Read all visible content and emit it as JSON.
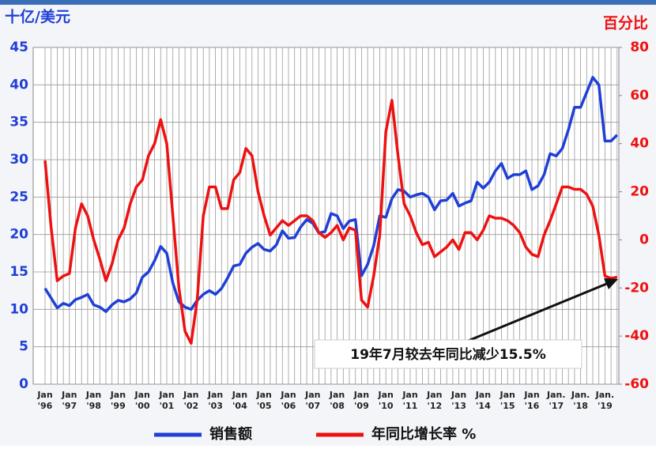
{
  "chart_data": {
    "type": "line",
    "y_label": "十亿/美元",
    "y2_label": "百分比",
    "annotation": "19年7月较去年同比减少15.5%",
    "categories": [
      "Jan '96",
      null,
      null,
      null,
      "Jan '97",
      null,
      null,
      null,
      "Jan '98",
      null,
      null,
      null,
      "Jan '99",
      null,
      null,
      null,
      "Jan '00",
      null,
      null,
      null,
      "Jan '01",
      null,
      null,
      null,
      "Jan '02",
      null,
      null,
      null,
      "Jan '03",
      null,
      null,
      null,
      "Jan '04",
      null,
      null,
      null,
      "Jan '05",
      null,
      null,
      null,
      "Jan '06",
      null,
      null,
      null,
      "Jan '07",
      null,
      null,
      null,
      "Jan '08",
      null,
      null,
      null,
      "Jan '09",
      null,
      null,
      null,
      "Jan '10",
      null,
      null,
      null,
      "Jan '11",
      null,
      null,
      null,
      "Jan '12",
      null,
      null,
      null,
      "Jan '13",
      null,
      null,
      null,
      "Jan '14",
      null,
      null,
      null,
      "Jan '15",
      null,
      null,
      null,
      "Jan '16",
      null,
      null,
      null,
      "Jan. '17",
      null,
      null,
      null,
      "Jan. '18",
      null,
      null,
      null,
      "Jan. '19",
      null,
      null
    ],
    "series": [
      {
        "name": "销售额",
        "color": "#1f3fd6",
        "values": [
          12.8,
          11.5,
          10.2,
          10.8,
          10.5,
          11.3,
          11.6,
          12.0,
          10.6,
          10.3,
          9.7,
          10.6,
          11.2,
          11.0,
          11.4,
          12.2,
          14.3,
          15.0,
          16.5,
          18.4,
          17.5,
          13.5,
          11.0,
          10.3,
          10.0,
          11.2,
          12.0,
          12.5,
          12.0,
          12.8,
          14.2,
          15.8,
          16.0,
          17.5,
          18.3,
          18.8,
          18.0,
          17.8,
          18.6,
          20.5,
          19.5,
          19.6,
          21.0,
          22.0,
          21.5,
          20.2,
          20.4,
          22.8,
          22.5,
          20.8,
          21.8,
          22.0,
          14.5,
          16.0,
          18.5,
          22.5,
          22.3,
          24.8,
          26.0,
          25.8,
          25.0,
          25.3,
          25.5,
          25.0,
          23.3,
          24.5,
          24.6,
          25.5,
          23.8,
          24.2,
          24.5,
          27.0,
          26.2,
          27.0,
          28.5,
          29.5,
          27.5,
          28.0,
          28.0,
          28.5,
          26.0,
          26.5,
          28.0,
          30.8,
          30.5,
          31.5,
          34.0,
          37.0,
          37.0,
          39.0,
          41.0,
          40.0,
          32.5,
          32.5,
          33.3
        ]
      },
      {
        "name": "年同比增长率 %",
        "color": "#ee1111",
        "axis": "y2",
        "values": [
          33,
          5,
          -17,
          -15,
          -14,
          5,
          15,
          10,
          0,
          -8,
          -17,
          -10,
          0,
          5,
          15,
          22,
          25,
          35,
          40,
          50,
          40,
          10,
          -20,
          -38,
          -43,
          -25,
          10,
          22,
          22,
          13,
          13,
          25,
          28,
          38,
          35,
          20,
          10,
          2,
          5,
          8,
          6,
          8,
          10,
          10,
          8,
          3,
          1,
          3,
          6,
          0,
          5,
          4,
          -25,
          -28,
          -15,
          2,
          45,
          58,
          35,
          15,
          10,
          3,
          -2,
          -1,
          -7,
          -5,
          -3,
          0,
          -4,
          3,
          3,
          0,
          4,
          10,
          9,
          9,
          8,
          6,
          3,
          -3,
          -6,
          -7,
          2,
          8,
          15,
          22,
          22,
          21,
          21,
          19,
          14,
          2,
          -15,
          -16,
          -15.5
        ]
      }
    ],
    "ylim": [
      0,
      45
    ],
    "yticks": [
      0,
      5,
      10,
      15,
      20,
      25,
      30,
      35,
      40,
      45
    ],
    "y2lim": [
      -60,
      80
    ],
    "y2ticks": [
      -60,
      -40,
      -20,
      0,
      20,
      40,
      60,
      80
    ],
    "grid": true
  }
}
